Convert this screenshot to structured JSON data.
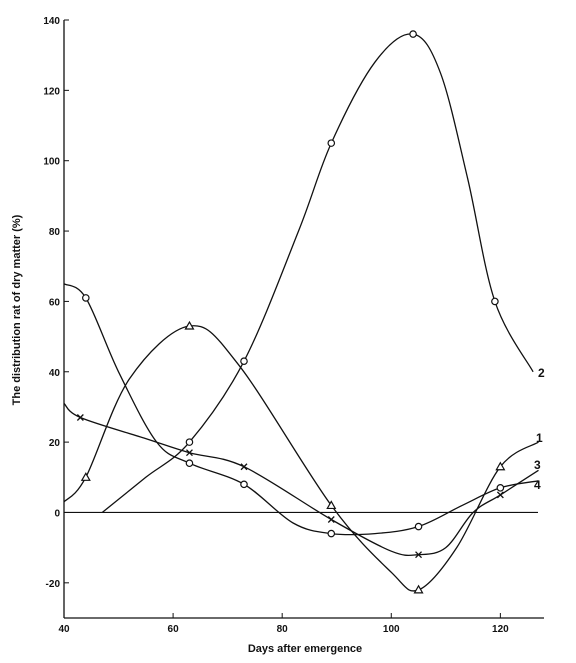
{
  "chart_data": {
    "type": "line",
    "xlabel": "Days after emergence",
    "ylabel": "The distribution rat of dry matter (%)",
    "xlim": [
      40,
      128
    ],
    "ylim": [
      -30,
      140
    ],
    "x_ticks": [
      40,
      60,
      80,
      100,
      120
    ],
    "x_tick_labels": [
      "40",
      "60",
      "80",
      "100",
      "120"
    ],
    "y_ticks": [
      -20,
      0,
      20,
      40,
      60,
      80,
      100,
      120,
      140
    ],
    "y_tick_labels": [
      "-20",
      "0",
      "20",
      "40",
      "60",
      "80",
      "100",
      "120",
      "140"
    ],
    "zero_line": true,
    "grid": false,
    "legend": "series numbers labeled at right ends of curves",
    "series": [
      {
        "name": "1",
        "marker": "triangle",
        "x": [
          40,
          44,
          52,
          63,
          72,
          89,
          100,
          105,
          112,
          120,
          127
        ],
        "y": [
          3,
          10,
          38,
          53,
          42,
          2,
          -17,
          -22,
          -10,
          13,
          20
        ],
        "marked_x": [
          44,
          63,
          89,
          105,
          120
        ]
      },
      {
        "name": "2",
        "marker": "circle",
        "x": [
          47,
          55,
          63,
          73,
          83,
          89,
          97,
          104,
          109,
          114,
          119,
          126
        ],
        "y": [
          0,
          10,
          20,
          43,
          80,
          105,
          128,
          136,
          125,
          95,
          60,
          40
        ],
        "marked_x": [
          63,
          73,
          89,
          104,
          119
        ]
      },
      {
        "name": "3",
        "marker": "x",
        "x": [
          40,
          43,
          55,
          63,
          73,
          89,
          100,
          105,
          110,
          115,
          120,
          127
        ],
        "y": [
          31,
          27,
          21,
          17,
          13,
          -2,
          -11,
          -12,
          -10,
          0,
          5,
          12
        ],
        "marked_x": [
          43,
          63,
          73,
          89,
          105,
          120
        ]
      },
      {
        "name": "4",
        "marker": "circle",
        "x": [
          40,
          44,
          50,
          57,
          63,
          73,
          82,
          89,
          97,
          105,
          113,
          120,
          127
        ],
        "y": [
          65,
          61,
          40,
          20,
          14,
          8,
          -3,
          -6,
          -6,
          -4,
          2,
          7,
          9
        ],
        "marked_x": [
          44,
          63,
          73,
          89,
          105,
          120
        ]
      }
    ]
  }
}
